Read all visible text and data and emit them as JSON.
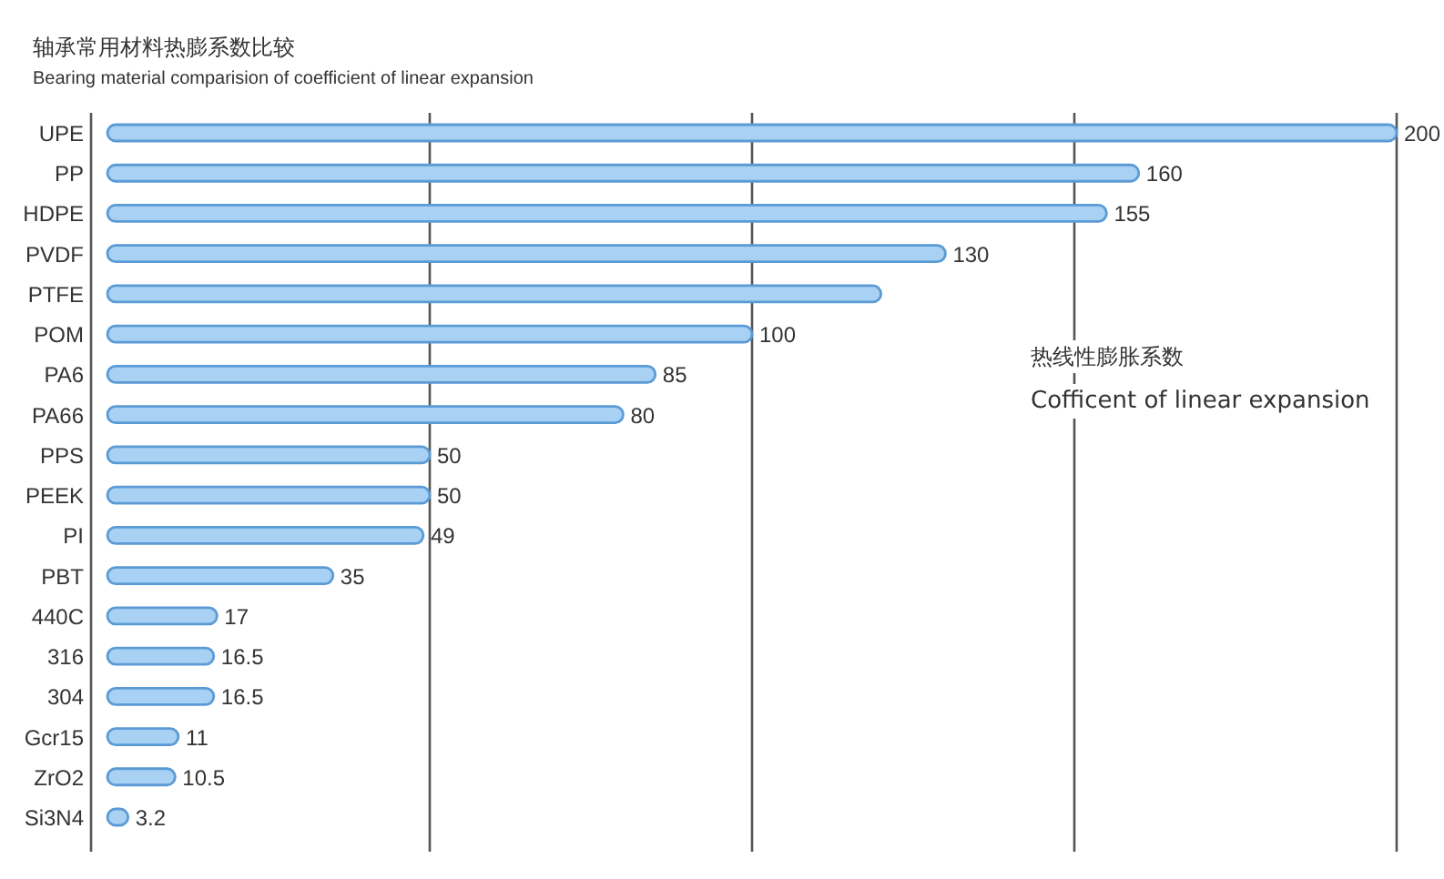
{
  "chart_data": {
    "type": "bar",
    "orientation": "horizontal",
    "title": "轴承常用材料热膨系数比较",
    "subtitle": "Bearing material comparision of coefficient of linear expansion",
    "categories": [
      "UPE",
      "PP",
      "HDPE",
      "PVDF",
      "PTFE",
      "POM",
      "PA6",
      "PA66",
      "PPS",
      "PEEK",
      "PI",
      "PBT",
      "440C",
      "316",
      "304",
      "Gcr15",
      "ZrO2",
      "Si3N4"
    ],
    "values": [
      200,
      160,
      155,
      130,
      120,
      100,
      85,
      80,
      50,
      50,
      49,
      35,
      17,
      16.5,
      16.5,
      11,
      10.5,
      3.2
    ],
    "value_labels": [
      "200",
      "160",
      "155",
      "130",
      null,
      "100",
      "85",
      "80",
      "50",
      "50",
      "49",
      "35",
      "17",
      "16.5",
      "16.5",
      "11",
      "10.5",
      "3.2"
    ],
    "color": "#a9d1f3",
    "xlim": [
      0,
      200
    ],
    "xticks": [
      {
        "value": 50,
        "label": null
      },
      {
        "value": 100,
        "label": null
      },
      {
        "value": 150,
        "label": null
      },
      {
        "value": 200,
        "label": null
      }
    ],
    "grid": "x",
    "tick_labels": "y",
    "annotations": [
      "热线性膨胀系数",
      "Cofficent of linear expansion"
    ]
  }
}
